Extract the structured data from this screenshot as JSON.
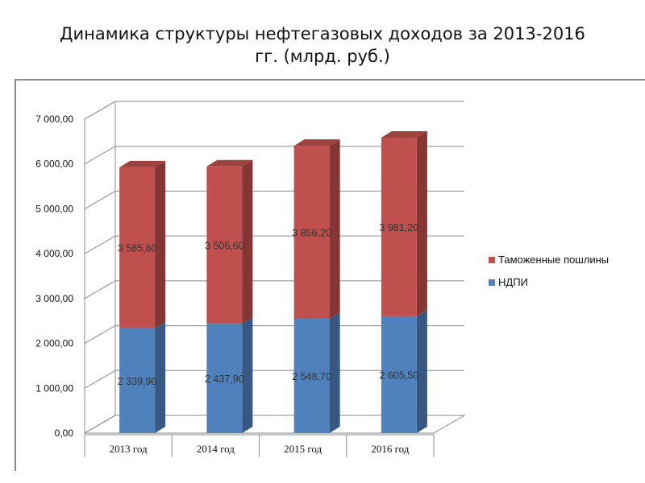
{
  "chart_data": {
    "type": "bar",
    "stacked": true,
    "style": "3d",
    "title": "Динамика структуры нефтегазовых доходов за 2013-2016 гг. (млрд. руб.)",
    "title_lines": [
      "Динамика структуры нефтегазовых доходов за 2013-2016",
      "гг. (млрд. руб.)"
    ],
    "categories": [
      "2013 год",
      "2014 год",
      "2015 год",
      "2016 год"
    ],
    "y_ticks": [
      "0,00",
      "1 000,00",
      "2 000,00",
      "3 000,00",
      "4 000,00",
      "5 000,00",
      "6 000,00",
      "7 000,00"
    ],
    "ylim": [
      0,
      7000
    ],
    "grid": true,
    "legend_position": "right",
    "series": [
      {
        "name": "НДПИ",
        "color": "#4f81bd",
        "values": [
          2339.9,
          2437.9,
          2548.7,
          2605.5
        ],
        "labels": [
          "2 339,90",
          "2 437,90",
          "2 548,70",
          "2 605,50"
        ]
      },
      {
        "name": "Таможенные пошлины",
        "color": "#c0504d",
        "values": [
          3585.6,
          3506.6,
          3856.2,
          3981.2
        ],
        "labels": [
          "3 585,60",
          "3 506,60",
          "3 856,20",
          "3 981,20"
        ]
      }
    ],
    "legend": [
      "Таможенные пошлины",
      "НДПИ"
    ]
  }
}
